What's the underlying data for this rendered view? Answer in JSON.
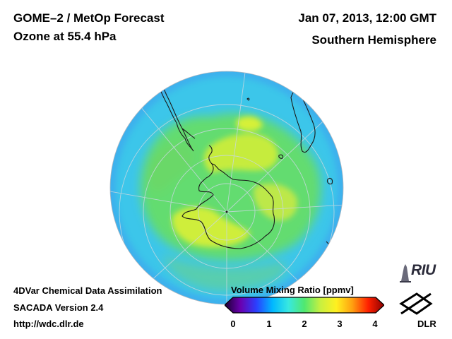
{
  "header": {
    "product": "GOME–2 / MetOp Forecast",
    "parameter": "Ozone at 55.4 hPa",
    "datetime": "Jan 07, 2013, 12:00 GMT",
    "region": "Southern Hemisphere"
  },
  "footer": {
    "line1": "4DVar Chemical Data Assimilation",
    "line2": "SACADA Version 2.4",
    "line3": "http://wdc.dlr.de"
  },
  "colorbar": {
    "title": "Volume Mixing Ratio [ppmv]",
    "min": 0,
    "max": 4,
    "ticks": [
      "0",
      "1",
      "2",
      "3",
      "4"
    ],
    "colors": [
      "#1a0030",
      "#6a00b0",
      "#2a40ff",
      "#00b8ff",
      "#38e8e0",
      "#50e870",
      "#c8f040",
      "#fff020",
      "#ffa010",
      "#ff2000",
      "#8a0000"
    ]
  },
  "logos": {
    "riu": "RIU",
    "dlr": "DLR"
  },
  "map": {
    "projection": "orthographic, south polar",
    "field_colors": {
      "background_low": "#38c8ec",
      "mid": "#7ee060",
      "high": "#d8ee40",
      "outer_edge": "#40a8f0"
    }
  }
}
